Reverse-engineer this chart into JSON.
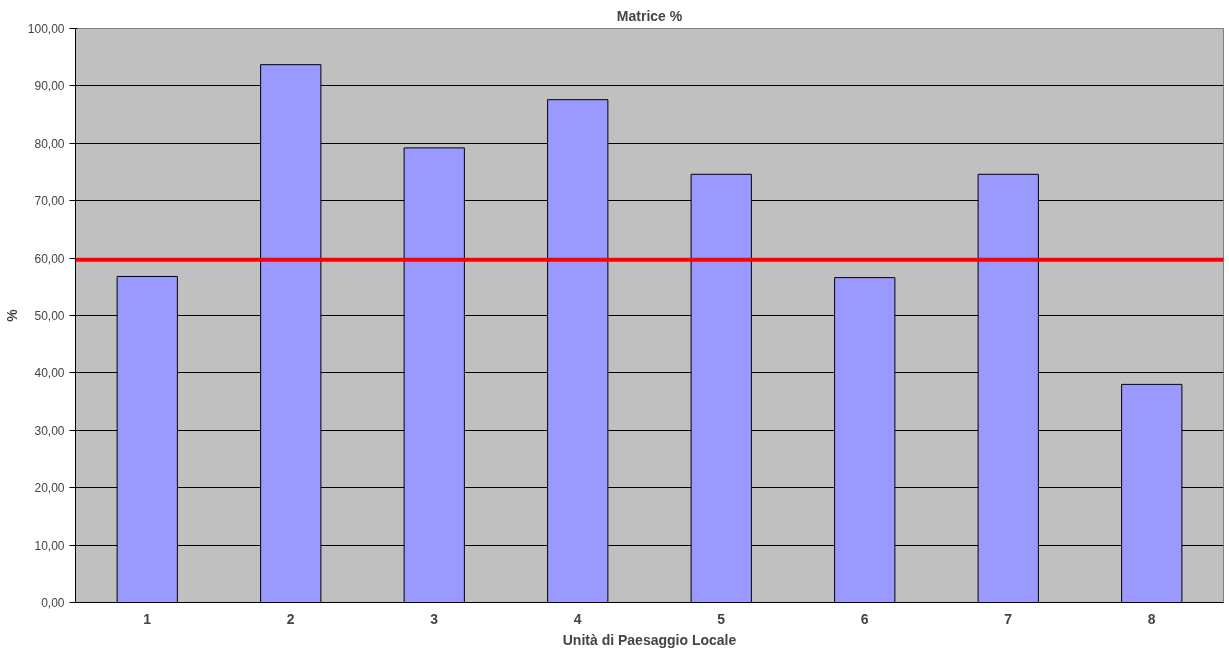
{
  "chart_data": {
    "type": "bar",
    "title": "Matrice %",
    "xlabel": "Unità di Paesaggio Locale",
    "ylabel": "%",
    "categories": [
      "1",
      "2",
      "3",
      "4",
      "5",
      "6",
      "7",
      "8"
    ],
    "values": [
      56.8,
      93.7,
      79.2,
      87.6,
      74.6,
      56.6,
      74.6,
      38.0
    ],
    "color": "#9999ff",
    "ylim": [
      0,
      100
    ],
    "yticks": [
      {
        "value": 0,
        "label": "0,00"
      },
      {
        "value": 10,
        "label": "10,00"
      },
      {
        "value": 20,
        "label": "20,00"
      },
      {
        "value": 30,
        "label": "30,00"
      },
      {
        "value": 40,
        "label": "40,00"
      },
      {
        "value": 50,
        "label": "50,00"
      },
      {
        "value": 60,
        "label": "60,00"
      },
      {
        "value": 70,
        "label": "70,00"
      },
      {
        "value": 80,
        "label": "80,00"
      },
      {
        "value": 90,
        "label": "90,00"
      },
      {
        "value": 100,
        "label": "100,00"
      }
    ],
    "grid": "y",
    "ref_lines": [
      {
        "axis": "y",
        "value": 59.7,
        "color": "#ff0000"
      }
    ]
  }
}
